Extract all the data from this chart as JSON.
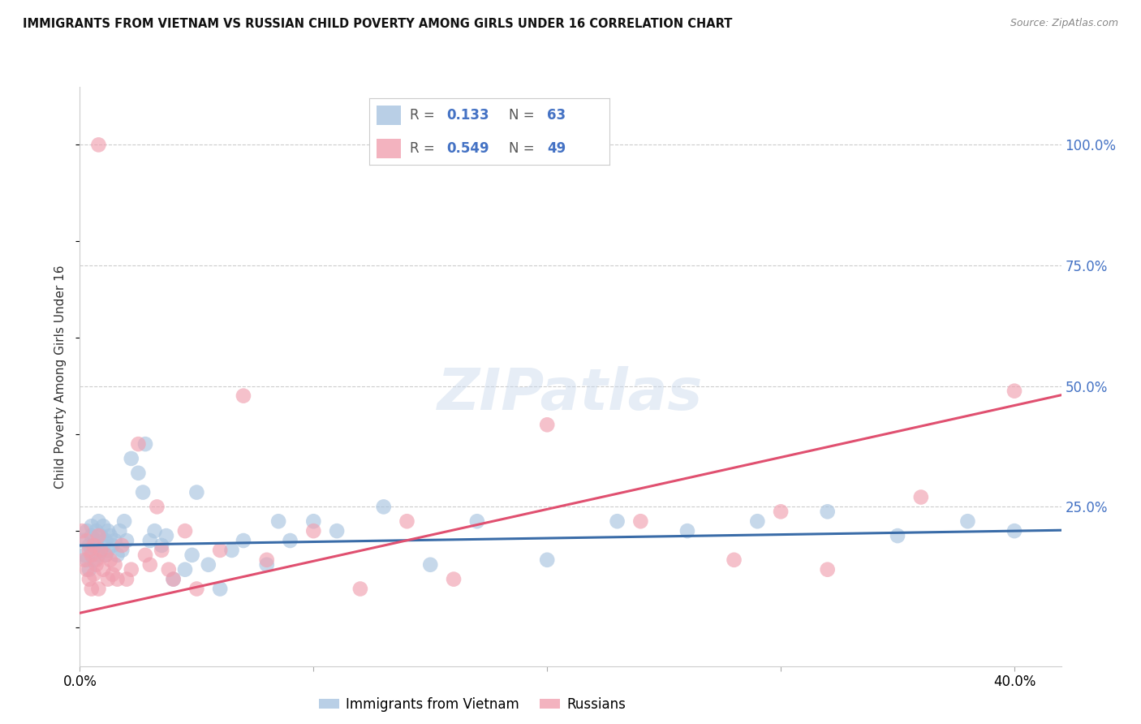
{
  "title": "IMMIGRANTS FROM VIETNAM VS RUSSIAN CHILD POVERTY AMONG GIRLS UNDER 16 CORRELATION CHART",
  "source": "Source: ZipAtlas.com",
  "ylabel": "Child Poverty Among Girls Under 16",
  "ytick_labels": [
    "100.0%",
    "75.0%",
    "50.0%",
    "25.0%"
  ],
  "ytick_values": [
    1.0,
    0.75,
    0.5,
    0.25
  ],
  "xlim": [
    0.0,
    0.42
  ],
  "ylim": [
    -0.08,
    1.12
  ],
  "legend_entry1": {
    "R": "0.133",
    "N": "63",
    "color": "#a8c4e0"
  },
  "legend_entry2": {
    "R": "0.549",
    "N": "49",
    "color": "#f0a0b0"
  },
  "vietnam_color": "#a8c4e0",
  "russian_color": "#f0a0b0",
  "vietnam_line_color": "#3a6ca8",
  "russian_line_color": "#e05070",
  "legend1_label": "Immigrants from Vietnam",
  "legend2_label": "Russians",
  "vietnam_x": [
    0.001,
    0.002,
    0.003,
    0.003,
    0.004,
    0.004,
    0.005,
    0.005,
    0.005,
    0.006,
    0.006,
    0.007,
    0.007,
    0.008,
    0.008,
    0.009,
    0.009,
    0.01,
    0.01,
    0.011,
    0.011,
    0.012,
    0.012,
    0.013,
    0.014,
    0.015,
    0.016,
    0.017,
    0.018,
    0.019,
    0.02,
    0.022,
    0.025,
    0.027,
    0.028,
    0.03,
    0.032,
    0.035,
    0.037,
    0.04,
    0.045,
    0.048,
    0.05,
    0.055,
    0.06,
    0.065,
    0.07,
    0.08,
    0.085,
    0.09,
    0.1,
    0.11,
    0.13,
    0.15,
    0.17,
    0.2,
    0.23,
    0.26,
    0.29,
    0.32,
    0.35,
    0.38,
    0.4
  ],
  "vietnam_y": [
    0.18,
    0.15,
    0.2,
    0.14,
    0.17,
    0.12,
    0.19,
    0.16,
    0.21,
    0.17,
    0.14,
    0.2,
    0.18,
    0.15,
    0.22,
    0.16,
    0.19,
    0.17,
    0.21,
    0.15,
    0.18,
    0.2,
    0.16,
    0.19,
    0.17,
    0.18,
    0.15,
    0.2,
    0.16,
    0.22,
    0.18,
    0.35,
    0.32,
    0.28,
    0.38,
    0.18,
    0.2,
    0.17,
    0.19,
    0.1,
    0.12,
    0.15,
    0.28,
    0.13,
    0.08,
    0.16,
    0.18,
    0.13,
    0.22,
    0.18,
    0.22,
    0.2,
    0.25,
    0.13,
    0.22,
    0.14,
    0.22,
    0.2,
    0.22,
    0.24,
    0.19,
    0.22,
    0.2
  ],
  "russian_x": [
    0.001,
    0.002,
    0.003,
    0.003,
    0.004,
    0.004,
    0.005,
    0.005,
    0.006,
    0.006,
    0.007,
    0.007,
    0.008,
    0.008,
    0.009,
    0.01,
    0.011,
    0.012,
    0.013,
    0.014,
    0.015,
    0.016,
    0.018,
    0.02,
    0.022,
    0.025,
    0.028,
    0.03,
    0.033,
    0.035,
    0.038,
    0.04,
    0.045,
    0.05,
    0.06,
    0.07,
    0.08,
    0.1,
    0.12,
    0.14,
    0.16,
    0.2,
    0.24,
    0.28,
    0.3,
    0.32,
    0.36,
    0.4,
    0.008
  ],
  "russian_y": [
    0.2,
    0.14,
    0.18,
    0.12,
    0.16,
    0.1,
    0.15,
    0.08,
    0.17,
    0.11,
    0.14,
    0.13,
    0.19,
    0.08,
    0.16,
    0.12,
    0.15,
    0.1,
    0.14,
    0.11,
    0.13,
    0.1,
    0.17,
    0.1,
    0.12,
    0.38,
    0.15,
    0.13,
    0.25,
    0.16,
    0.12,
    0.1,
    0.2,
    0.08,
    0.16,
    0.48,
    0.14,
    0.2,
    0.08,
    0.22,
    0.1,
    0.42,
    0.22,
    0.14,
    0.24,
    0.12,
    0.27,
    0.49,
    1.0
  ]
}
